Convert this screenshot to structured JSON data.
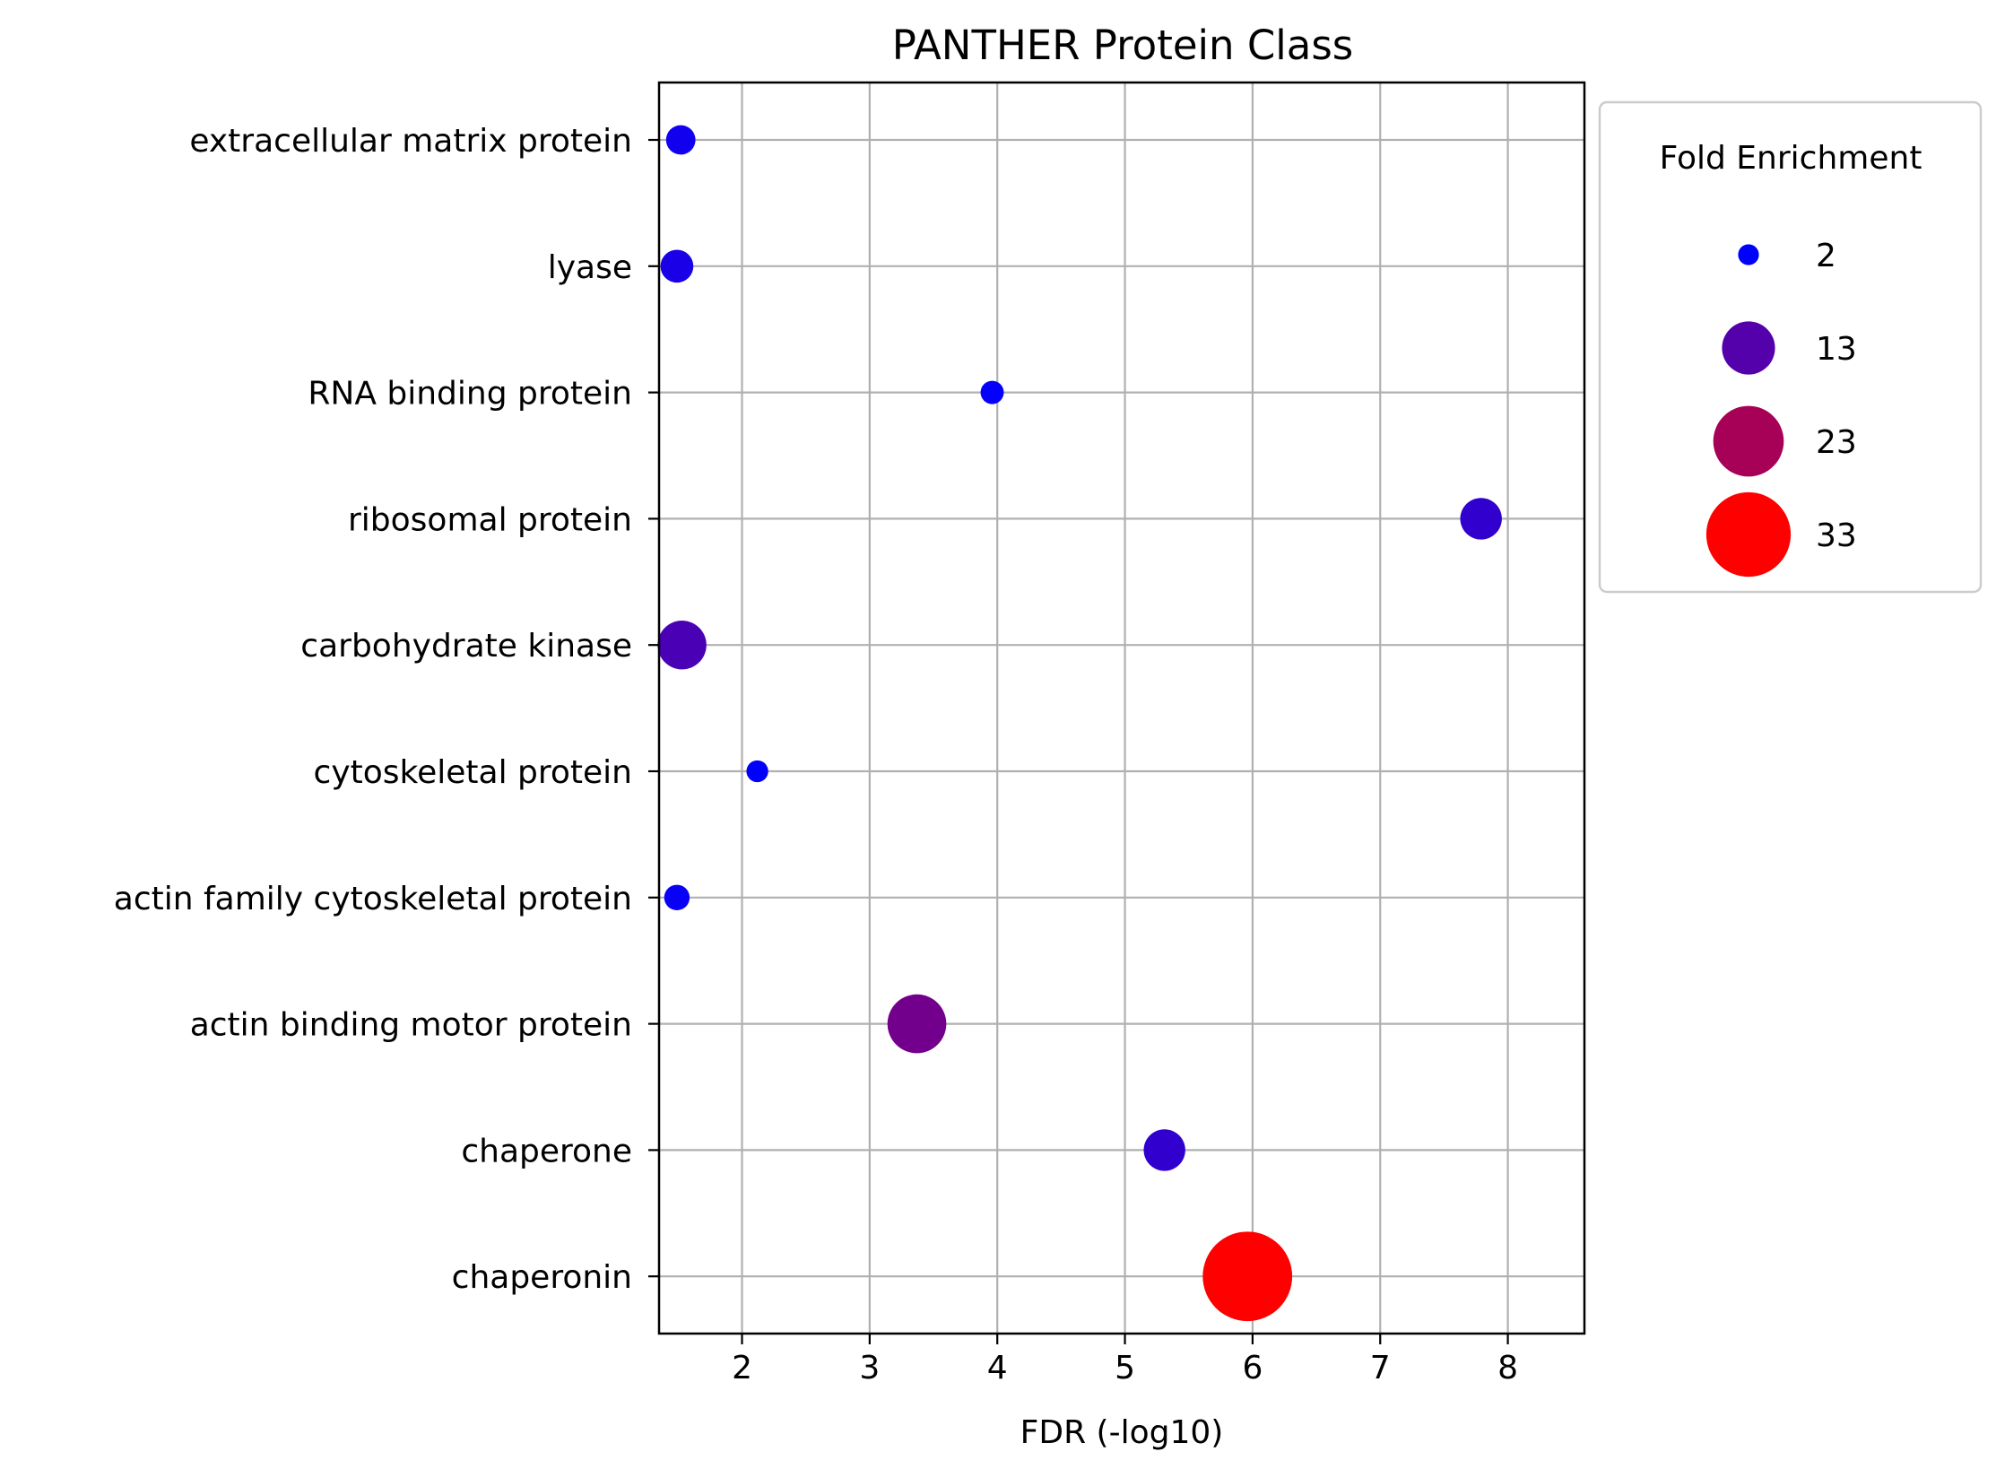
{
  "chart_data": {
    "type": "scatter",
    "title": "PANTHER Protein Class",
    "xlabel": "FDR (-log10)",
    "ylabel": "",
    "xlim": [
      1.35,
      8.6
    ],
    "xticks": [
      2,
      3,
      4,
      5,
      6,
      7,
      8
    ],
    "grid": true,
    "categories": [
      "extracellular matrix protein",
      "lyase",
      "RNA binding protein",
      "ribosomal protein",
      "carbohydrate kinase",
      "cytoskeletal protein",
      "actin family cytoskeletal protein",
      "actin binding motor protein",
      "chaperone",
      "chaperonin"
    ],
    "points": [
      {
        "category": "extracellular matrix protein",
        "x": 1.52,
        "fold_enrichment": 4.0
      },
      {
        "category": "lyase",
        "x": 1.49,
        "fold_enrichment": 5.0
      },
      {
        "category": "RNA binding protein",
        "x": 3.96,
        "fold_enrichment": 2.5
      },
      {
        "category": "ribosomal protein",
        "x": 7.79,
        "fold_enrichment": 8.0
      },
      {
        "category": "carbohydrate kinase",
        "x": 1.53,
        "fold_enrichment": 11.0
      },
      {
        "category": "cytoskeletal protein",
        "x": 2.12,
        "fold_enrichment": 2.2
      },
      {
        "category": "actin family cytoskeletal protein",
        "x": 1.49,
        "fold_enrichment": 3.0
      },
      {
        "category": "actin binding motor protein",
        "x": 3.37,
        "fold_enrichment": 16.0
      },
      {
        "category": "chaperone",
        "x": 5.31,
        "fold_enrichment": 8.0
      },
      {
        "category": "chaperonin",
        "x": 5.96,
        "fold_enrichment": 37.0
      }
    ],
    "legend": {
      "title": "Fold Enrichment",
      "placement": "right, outside top",
      "entries": [
        {
          "label": "2",
          "value": 2,
          "color": "#0000ff"
        },
        {
          "label": "13",
          "value": 13,
          "color": "#5400ab"
        },
        {
          "label": "23",
          "value": 23,
          "color": "#a70057"
        },
        {
          "label": "33",
          "value": 33,
          "color": "#ff0000"
        }
      ]
    },
    "color_scale": {
      "low_color": "#0000ff",
      "high_color": "#ff0000",
      "min": 2,
      "max": 33
    }
  }
}
